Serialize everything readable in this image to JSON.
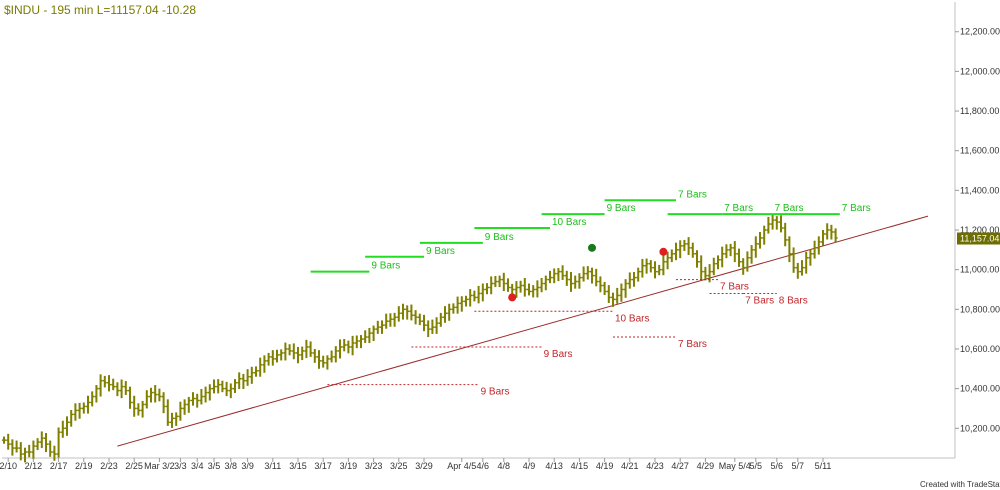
{
  "chart_data": {
    "type": "bar",
    "title": "$INDU - 195 min  L=11157.04  -10.28",
    "symbol": "$INDU",
    "interval": "195 min",
    "last_label": "L=11157.04",
    "change_label": "-10.28",
    "last_price": 11157.04,
    "last_price_label": "11,157.04",
    "ylim": [
      10050,
      12350
    ],
    "y_ticks": [
      {
        "value": 10200,
        "label": "10,200.00"
      },
      {
        "value": 10400,
        "label": "10,400.00"
      },
      {
        "value": 10600,
        "label": "10,600.00"
      },
      {
        "value": 10800,
        "label": "10,800.00"
      },
      {
        "value": 11000,
        "label": "11,000.00"
      },
      {
        "value": 11200,
        "label": "11,200.00"
      },
      {
        "value": 11400,
        "label": "11,400.00"
      },
      {
        "value": 11600,
        "label": "11,600.00"
      },
      {
        "value": 11800,
        "label": "11,800.00"
      },
      {
        "value": 12000,
        "label": "12,000.00"
      },
      {
        "value": 12200,
        "label": "12,200.00"
      }
    ],
    "x_ticks": [
      {
        "bar": 1,
        "label": "2/10"
      },
      {
        "bar": 7,
        "label": "2/12"
      },
      {
        "bar": 13,
        "label": "2/17"
      },
      {
        "bar": 19,
        "label": "2/19"
      },
      {
        "bar": 25,
        "label": "2/23"
      },
      {
        "bar": 31,
        "label": "2/25"
      },
      {
        "bar": 37,
        "label": "Mar 3/2"
      },
      {
        "bar": 42,
        "label": "3/3"
      },
      {
        "bar": 46,
        "label": "3/4"
      },
      {
        "bar": 50,
        "label": "3/5"
      },
      {
        "bar": 54,
        "label": "3/8"
      },
      {
        "bar": 58,
        "label": "3/9"
      },
      {
        "bar": 64,
        "label": "3/11"
      },
      {
        "bar": 70,
        "label": "3/15"
      },
      {
        "bar": 76,
        "label": "3/17"
      },
      {
        "bar": 82,
        "label": "3/19"
      },
      {
        "bar": 88,
        "label": "3/23"
      },
      {
        "bar": 94,
        "label": "3/25"
      },
      {
        "bar": 100,
        "label": "3/29"
      },
      {
        "bar": 109,
        "label": "Apr 4/5"
      },
      {
        "bar": 114,
        "label": "4/6"
      },
      {
        "bar": 119,
        "label": "4/8"
      },
      {
        "bar": 125,
        "label": "4/9"
      },
      {
        "bar": 131,
        "label": "4/13"
      },
      {
        "bar": 137,
        "label": "4/15"
      },
      {
        "bar": 143,
        "label": "4/19"
      },
      {
        "bar": 149,
        "label": "4/21"
      },
      {
        "bar": 155,
        "label": "4/23"
      },
      {
        "bar": 161,
        "label": "4/27"
      },
      {
        "bar": 167,
        "label": "4/29"
      },
      {
        "bar": 174,
        "label": "May 5/4"
      },
      {
        "bar": 179,
        "label": "5/5"
      },
      {
        "bar": 184,
        "label": "5/6"
      },
      {
        "bar": 189,
        "label": "5/7"
      },
      {
        "bar": 195,
        "label": "5/11"
      }
    ],
    "closes": [
      10140,
      10120,
      10100,
      10100,
      10070,
      10080,
      10080,
      10110,
      10130,
      10150,
      10120,
      10080,
      10070,
      10180,
      10200,
      10230,
      10270,
      10290,
      10300,
      10310,
      10330,
      10360,
      10400,
      10440,
      10430,
      10420,
      10410,
      10390,
      10410,
      10390,
      10330,
      10300,
      10290,
      10320,
      10360,
      10380,
      10370,
      10360,
      10310,
      10230,
      10250,
      10260,
      10300,
      10320,
      10340,
      10350,
      10340,
      10360,
      10380,
      10400,
      10410,
      10420,
      10400,
      10390,
      10400,
      10430,
      10450,
      10440,
      10460,
      10480,
      10490,
      10520,
      10540,
      10560,
      10550,
      10570,
      10580,
      10600,
      10590,
      10580,
      10570,
      10590,
      10610,
      10580,
      10560,
      10540,
      10530,
      10550,
      10560,
      10590,
      10610,
      10620,
      10610,
      10630,
      10640,
      10650,
      10660,
      10680,
      10700,
      10710,
      10720,
      10740,
      10750,
      10760,
      10780,
      10800,
      10790,
      10770,
      10760,
      10740,
      10720,
      10700,
      10710,
      10730,
      10760,
      10780,
      10800,
      10810,
      10830,
      10840,
      10850,
      10870,
      10860,
      10880,
      10900,
      10910,
      10930,
      10940,
      10950,
      10930,
      10910,
      10900,
      10910,
      10920,
      10900,
      10890,
      10900,
      10910,
      10930,
      10950,
      10960,
      10980,
      10990,
      10970,
      10950,
      10930,
      10940,
      10960,
      10980,
      10990,
      10970,
      10940,
      10920,
      10890,
      10860,
      10850,
      10870,
      10900,
      10930,
      10950,
      10960,
      10990,
      11020,
      11030,
      11010,
      10990,
      11000,
      11040,
      11060,
      11080,
      11100,
      11120,
      11130,
      11110,
      11080,
      11040,
      10990,
      10970,
      10990,
      11030,
      11050,
      11080,
      11100,
      11110,
      11080,
      11040,
      11010,
      11060,
      11100,
      11130,
      11160,
      11200,
      11230,
      11250,
      11240,
      11210,
      11150,
      11080,
      11010,
      10990,
      11010,
      11060,
      11080,
      11110,
      11140,
      11180,
      11200,
      11190,
      11160
    ],
    "zigzag_up": [
      {
        "from_bar": 73,
        "to_bar": 87,
        "price": 10990,
        "label": "9 Bars"
      },
      {
        "from_bar": 86,
        "to_bar": 100,
        "price": 11065,
        "label": "9 Bars"
      },
      {
        "from_bar": 99,
        "to_bar": 114,
        "price": 11135,
        "label": "9 Bars"
      },
      {
        "from_bar": 112,
        "to_bar": 130,
        "price": 11210,
        "label": "10 Bars"
      },
      {
        "from_bar": 128,
        "to_bar": 143,
        "price": 11280,
        "label": "9 Bars"
      },
      {
        "from_bar": 143,
        "to_bar": 160,
        "price": 11350,
        "label": "7 Bars"
      },
      {
        "from_bar": 158,
        "to_bar": 171,
        "price": 11280,
        "label": "7 Bars"
      },
      {
        "from_bar": 171,
        "to_bar": 183,
        "price": 11280,
        "label": "7 Bars"
      },
      {
        "from_bar": 183,
        "to_bar": 199,
        "price": 11280,
        "label": "7 Bars"
      }
    ],
    "zigzag_down": [
      {
        "from_bar": 77,
        "to_bar": 113,
        "price": 10420,
        "label": "9 Bars"
      },
      {
        "from_bar": 97,
        "to_bar": 128,
        "price": 10610,
        "label": "9 Bars"
      },
      {
        "from_bar": 112,
        "to_bar": 145,
        "price": 10790,
        "label": "10 Bars"
      },
      {
        "from_bar": 145,
        "to_bar": 160,
        "price": 10660,
        "label": "7 Bars"
      },
      {
        "from_bar": 160,
        "to_bar": 170,
        "price": 10950,
        "label": "7 Bars"
      },
      {
        "from_bar": 168,
        "to_bar": 176,
        "price": 10880,
        "label": "7 Bars"
      },
      {
        "from_bar": 176,
        "to_bar": 184,
        "price": 10880,
        "label": "8 Bars"
      }
    ],
    "trendline": {
      "from_bar": 27,
      "from_price": 10110,
      "to_bar": 220,
      "to_price": 11270
    },
    "pivots": [
      {
        "bar": 140,
        "price": 11110,
        "color": "#1a7a1a"
      },
      {
        "bar": 121,
        "price": 10860,
        "color": "#e02020"
      },
      {
        "bar": 157,
        "price": 11090,
        "color": "#e02020"
      }
    ],
    "colors": {
      "price_bar": "#7f7f00",
      "zigzag_up": "#22dd22",
      "zigzag_down": "#c0262b",
      "trendline": "#9a2a2a",
      "axis_line": "#c0c0c0",
      "last_price_box": "#6d6d00"
    }
  },
  "footer": {
    "credit": "Created with TradeStation"
  }
}
